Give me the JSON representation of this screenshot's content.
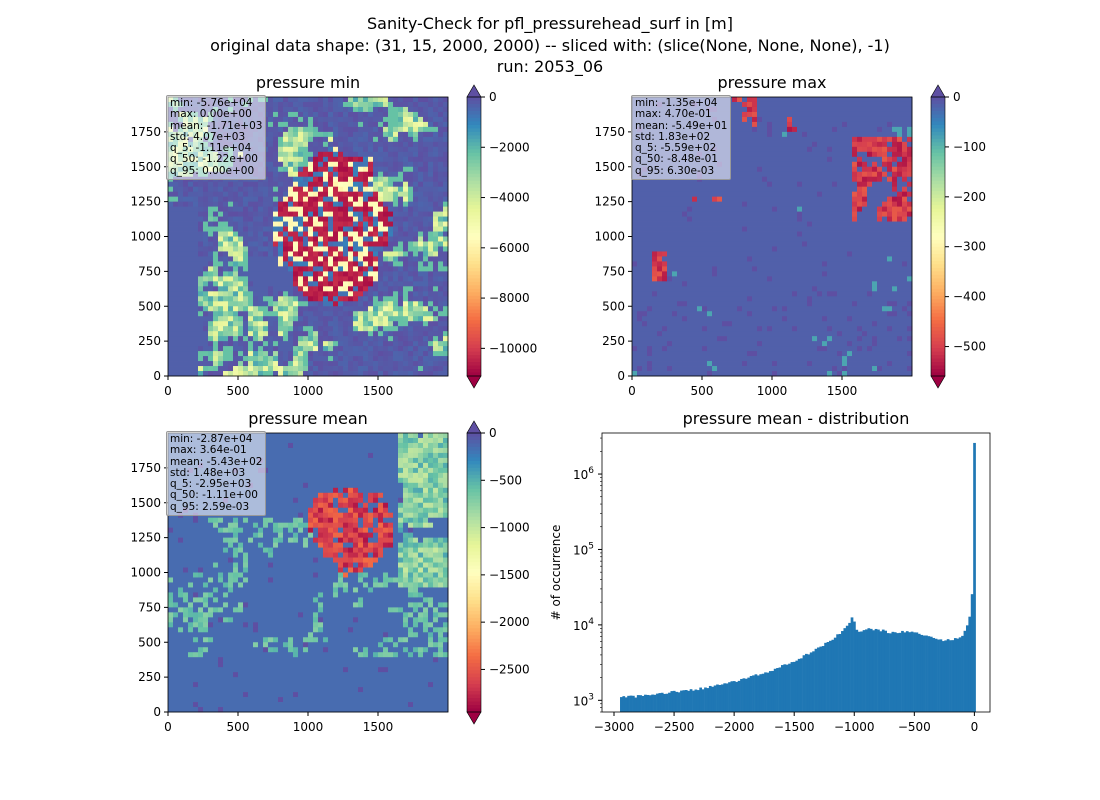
{
  "figure": {
    "title_lines": [
      "Sanity-Check for pfl_pressurehead_surf in [m]",
      "original data shape: (31, 15, 2000, 2000) -- sliced with: (slice(None, None, None), -1)",
      "run: 2053_06"
    ]
  },
  "chart_data": [
    {
      "type": "heatmap",
      "title": "pressure min",
      "xlabel": "",
      "ylabel": "",
      "xlim": [
        0,
        2000
      ],
      "ylim": [
        0,
        2000
      ],
      "xticks": [
        "0",
        "500",
        "1000",
        "1500"
      ],
      "yticks": [
        "0",
        "250",
        "500",
        "750",
        "1000",
        "1250",
        "1500",
        "1750"
      ],
      "colormap": "Spectral",
      "colorbar": {
        "vmin": -11100,
        "vmax": 0,
        "ticks": [
          "0",
          "−2000",
          "−4000",
          "−6000",
          "−8000",
          "−10000"
        ],
        "tick_values": [
          0,
          -2000,
          -4000,
          -6000,
          -8000,
          -10000
        ],
        "extend": "both"
      },
      "stats": [
        "min: -5.76e+04",
        "max: 0.00e+00",
        "mean: -1.71e+03",
        "std: 4.07e+03",
        "q_5: -1.11e+04",
        "q_50: -1.22e+00",
        "q_95: 0.00e+00"
      ]
    },
    {
      "type": "heatmap",
      "title": "pressure max",
      "xlabel": "",
      "ylabel": "",
      "xlim": [
        0,
        2000
      ],
      "ylim": [
        0,
        2000
      ],
      "xticks": [
        "0",
        "500",
        "1000",
        "1500"
      ],
      "yticks": [
        "0",
        "250",
        "500",
        "750",
        "1000",
        "1250",
        "1500",
        "1750"
      ],
      "colormap": "Spectral",
      "colorbar": {
        "vmin": -559,
        "vmax": 0,
        "ticks": [
          "0",
          "−100",
          "−200",
          "−300",
          "−400",
          "−500"
        ],
        "tick_values": [
          0,
          -100,
          -200,
          -300,
          -400,
          -500
        ],
        "extend": "both"
      },
      "stats": [
        "min: -1.35e+04",
        "max: 4.70e-01",
        "mean: -5.49e+01",
        "std: 1.83e+02",
        "q_5: -5.59e+02",
        "q_50: -8.48e-01",
        "q_95: 6.30e-03"
      ]
    },
    {
      "type": "heatmap",
      "title": "pressure mean",
      "xlabel": "",
      "ylabel": "",
      "xlim": [
        0,
        2000
      ],
      "ylim": [
        0,
        2000
      ],
      "xticks": [
        "0",
        "500",
        "1000",
        "1500"
      ],
      "yticks": [
        "0",
        "250",
        "500",
        "750",
        "1000",
        "1250",
        "1500",
        "1750"
      ],
      "colormap": "Spectral",
      "colorbar": {
        "vmin": -2950,
        "vmax": 0,
        "ticks": [
          "0",
          "−500",
          "−1000",
          "−1500",
          "−2000",
          "−2500"
        ],
        "tick_values": [
          0,
          -500,
          -1000,
          -1500,
          -2000,
          -2500
        ],
        "extend": "both"
      },
      "stats": [
        "min: -2.87e+04",
        "max: 3.64e-01",
        "mean: -5.43e+02",
        "std: 1.48e+03",
        "q_5: -2.95e+03",
        "q_50: -1.11e+00",
        "q_95: 2.59e-03"
      ]
    },
    {
      "type": "bar",
      "subtype": "histogram",
      "title": "pressure mean - distribution",
      "xlabel": "",
      "ylabel": "# of occurrence",
      "yscale": "log",
      "xlim": [
        -3100,
        130
      ],
      "ylim": [
        700,
        3500000
      ],
      "xticks": [
        "−3000",
        "−2500",
        "−2000",
        "−1500",
        "−1000",
        "−500",
        "0"
      ],
      "xtick_values": [
        -3000,
        -2500,
        -2000,
        -1500,
        -1000,
        -500,
        0
      ],
      "ytick_exponents": [
        "3",
        "4",
        "5",
        "6"
      ],
      "color": "#1f77b4",
      "profile_x": [
        -2950,
        -2750,
        -2500,
        -2250,
        -2000,
        -1750,
        -1500,
        -1250,
        -1100,
        -1040,
        -1010,
        -990,
        -960,
        -900,
        -800,
        -700,
        -600,
        -500,
        -400,
        -300,
        -200,
        -100,
        -60,
        -40,
        -25,
        -15,
        -8,
        -5
      ],
      "profile_y": [
        1100,
        1150,
        1300,
        1450,
        1750,
        2300,
        3300,
        5500,
        8000,
        11000,
        14000,
        8500,
        8200,
        8800,
        8700,
        7800,
        8000,
        8000,
        7200,
        6300,
        6300,
        7000,
        9500,
        13000,
        20000,
        32000,
        60000,
        2500000
      ]
    }
  ]
}
